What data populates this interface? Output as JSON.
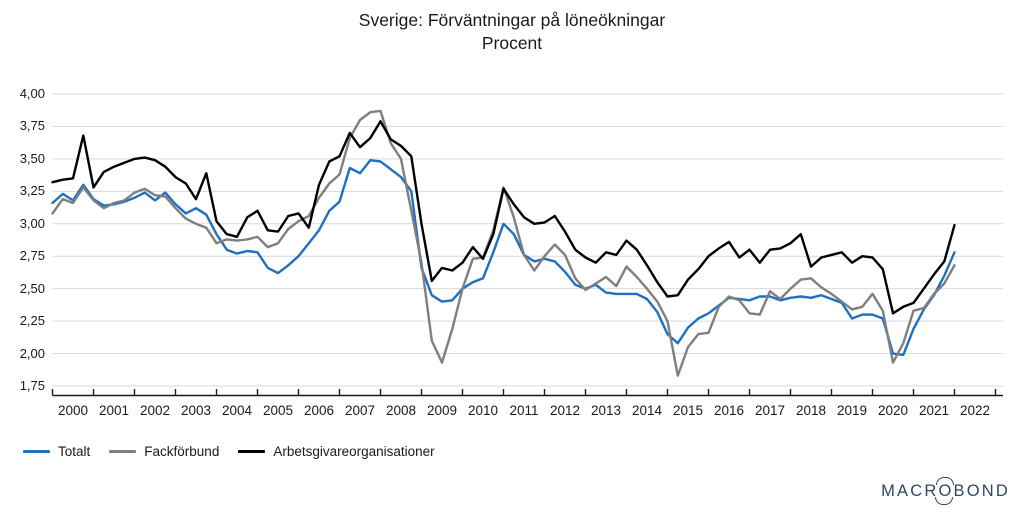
{
  "header": {
    "title": "Sverige: Förväntningar på löneökningar",
    "subtitle": "Procent"
  },
  "legend": {
    "items": [
      {
        "label": "Totalt",
        "color": "#1F70C1"
      },
      {
        "label": "Fackförbund",
        "color": "#7F7F7F"
      },
      {
        "label": "Arbetsgivareorganisationer",
        "color": "#000000"
      }
    ]
  },
  "branding": {
    "logo_pre": "MACR",
    "logo_o": "O",
    "logo_post": "BOND",
    "color": "#2C4866"
  },
  "chart_data": {
    "type": "line",
    "title": "Sverige: Förväntningar på löneökningar",
    "subtitle": "Procent",
    "unit": "procent",
    "frequency": "quarterly",
    "x_start_year": 2000,
    "points_per_year": 4,
    "x_tick_labels": [
      "2000",
      "2001",
      "2002",
      "2003",
      "2004",
      "2005",
      "2006",
      "2007",
      "2008",
      "2009",
      "2010",
      "2011",
      "2012",
      "2013",
      "2014",
      "2015",
      "2016",
      "2017",
      "2018",
      "2019",
      "2020",
      "2021",
      "2022"
    ],
    "y_tick_labels": [
      "4,00",
      "3,75",
      "3,50",
      "3,25",
      "3,00",
      "2,75",
      "2,50",
      "2,25",
      "2,00",
      "1,75"
    ],
    "ylim": [
      1.75,
      4.0
    ],
    "y_step": 0.25,
    "grid": "horizontal",
    "legend_position": "bottom-left",
    "axis_color": "#1a1a1a",
    "grid_color": "#d9d9d9",
    "series": [
      {
        "name": "Totalt",
        "color": "#1F70C1",
        "values": [
          3.16,
          3.23,
          3.18,
          3.3,
          3.19,
          3.14,
          3.15,
          3.17,
          3.2,
          3.24,
          3.18,
          3.24,
          3.15,
          3.08,
          3.12,
          3.07,
          2.92,
          2.8,
          2.77,
          2.79,
          2.78,
          2.66,
          2.62,
          2.68,
          2.75,
          2.85,
          2.95,
          3.1,
          3.17,
          3.43,
          3.39,
          3.49,
          3.48,
          3.42,
          3.36,
          3.25,
          2.66,
          2.45,
          2.4,
          2.41,
          2.5,
          2.55,
          2.58,
          2.78,
          3.0,
          2.92,
          2.76,
          2.71,
          2.73,
          2.71,
          2.63,
          2.53,
          2.5,
          2.53,
          2.47,
          2.46,
          2.46,
          2.46,
          2.42,
          2.32,
          2.15,
          2.08,
          2.2,
          2.27,
          2.31,
          2.37,
          2.43,
          2.42,
          2.41,
          2.44,
          2.44,
          2.41,
          2.43,
          2.44,
          2.43,
          2.45,
          2.42,
          2.39,
          2.27,
          2.3,
          2.3,
          2.27,
          2.0,
          1.99,
          2.19,
          2.34,
          2.45,
          2.6,
          2.78
        ]
      },
      {
        "name": "Fackförbund",
        "color": "#7F7F7F",
        "values": [
          3.08,
          3.19,
          3.16,
          3.28,
          3.18,
          3.12,
          3.16,
          3.18,
          3.24,
          3.27,
          3.22,
          3.21,
          3.12,
          3.04,
          3.0,
          2.97,
          2.85,
          2.88,
          2.87,
          2.88,
          2.9,
          2.82,
          2.85,
          2.96,
          3.02,
          3.06,
          3.2,
          3.31,
          3.38,
          3.66,
          3.8,
          3.86,
          3.87,
          3.62,
          3.5,
          3.1,
          2.7,
          2.1,
          1.93,
          2.19,
          2.5,
          2.73,
          2.74,
          2.95,
          3.28,
          3.05,
          2.76,
          2.64,
          2.75,
          2.84,
          2.76,
          2.58,
          2.49,
          2.54,
          2.59,
          2.52,
          2.67,
          2.59,
          2.5,
          2.4,
          2.25,
          1.83,
          2.05,
          2.15,
          2.16,
          2.36,
          2.44,
          2.41,
          2.31,
          2.3,
          2.48,
          2.42,
          2.5,
          2.57,
          2.58,
          2.51,
          2.46,
          2.4,
          2.34,
          2.36,
          2.46,
          2.33,
          1.93,
          2.08,
          2.33,
          2.35,
          2.46,
          2.54,
          2.68
        ]
      },
      {
        "name": "Arbetsgivareorganisationer",
        "color": "#000000",
        "values": [
          3.32,
          3.34,
          3.35,
          3.68,
          3.28,
          3.4,
          3.44,
          3.47,
          3.5,
          3.51,
          3.49,
          3.44,
          3.36,
          3.31,
          3.19,
          3.39,
          3.02,
          2.92,
          2.9,
          3.05,
          3.1,
          2.95,
          2.94,
          3.06,
          3.08,
          2.97,
          3.3,
          3.48,
          3.52,
          3.7,
          3.59,
          3.66,
          3.79,
          3.65,
          3.6,
          3.52,
          3.0,
          2.56,
          2.66,
          2.64,
          2.7,
          2.82,
          2.73,
          2.92,
          3.27,
          3.15,
          3.05,
          3.0,
          3.01,
          3.06,
          2.94,
          2.8,
          2.74,
          2.7,
          2.78,
          2.76,
          2.87,
          2.8,
          2.68,
          2.55,
          2.44,
          2.45,
          2.57,
          2.65,
          2.75,
          2.81,
          2.86,
          2.74,
          2.8,
          2.7,
          2.8,
          2.81,
          2.85,
          2.92,
          2.67,
          2.74,
          2.76,
          2.78,
          2.7,
          2.75,
          2.74,
          2.65,
          2.31,
          2.36,
          2.39,
          2.5,
          2.61,
          2.71,
          2.99
        ]
      }
    ]
  }
}
